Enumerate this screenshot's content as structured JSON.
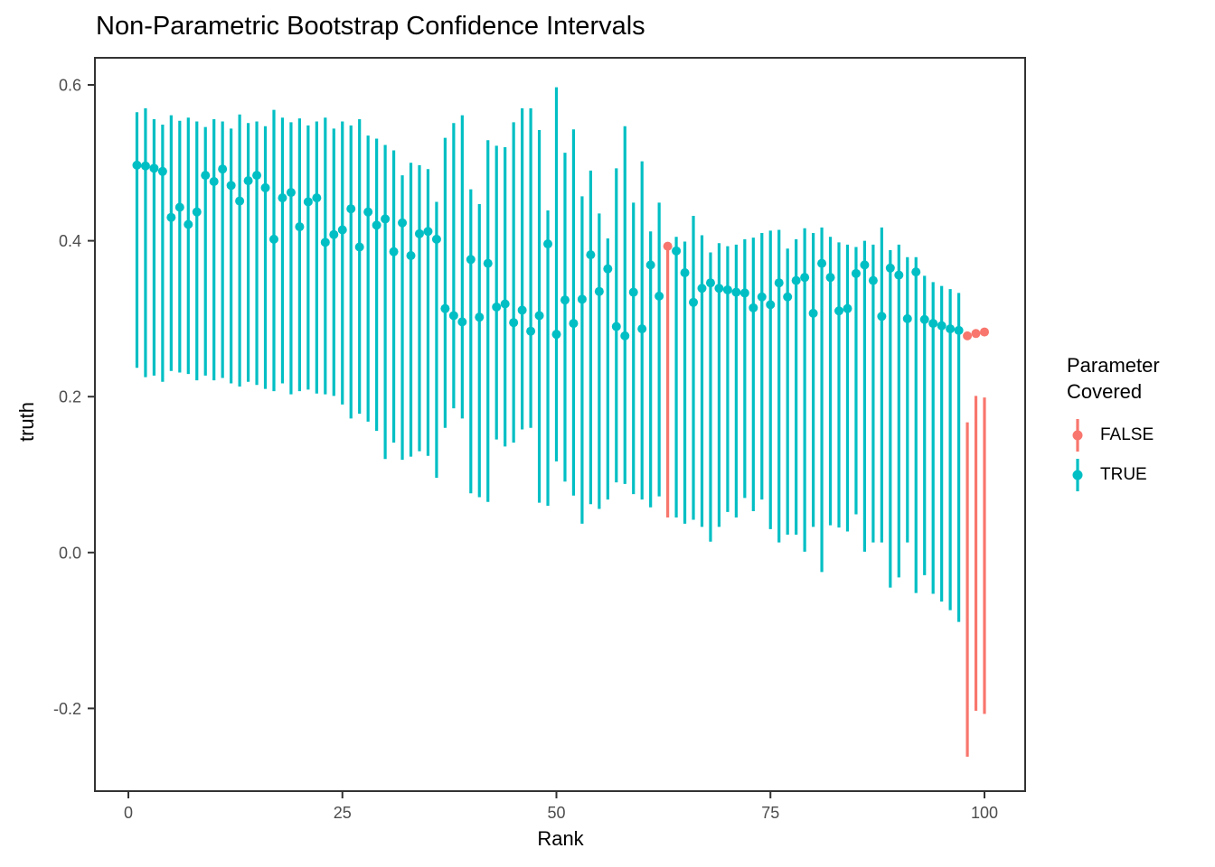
{
  "chart_data": {
    "type": "pointrange-scatter",
    "title": "Non-Parametric Bootstrap Confidence Intervals",
    "xlabel": "Rank",
    "ylabel": "truth",
    "grid": false,
    "panel_background": "#ffffff",
    "border_color": "#333333",
    "tick_label_color": "#4d4d4d",
    "xlim": [
      -4,
      104.5
    ],
    "ylim": [
      -0.306,
      0.641
    ],
    "x_ticks": [
      {
        "v": 0,
        "label": "0"
      },
      {
        "v": 25,
        "label": "25"
      },
      {
        "v": 50,
        "label": "50"
      },
      {
        "v": 75,
        "label": "75"
      },
      {
        "v": 100,
        "label": "100"
      }
    ],
    "y_ticks": [
      {
        "v": 0.6,
        "label": "0.6"
      },
      {
        "v": 0.4,
        "label": "0.4"
      },
      {
        "v": 0.2,
        "label": "0.2"
      },
      {
        "v": 0.0,
        "label": "0.0"
      },
      {
        "v": -0.2,
        "label": "-0.2"
      }
    ],
    "legend": {
      "title": "Parameter Covered",
      "position": "right",
      "items": [
        {
          "label": "FALSE",
          "value": false,
          "color": "#F8766D"
        },
        {
          "label": "TRUE",
          "value": true,
          "color": "#00BFC4"
        }
      ]
    },
    "points": [
      {
        "r": 1,
        "est": 0.497,
        "lo": 0.237,
        "hi": 0.565,
        "cov": true
      },
      {
        "r": 2,
        "est": 0.496,
        "lo": 0.225,
        "hi": 0.57,
        "cov": true
      },
      {
        "r": 3,
        "est": 0.493,
        "lo": 0.227,
        "hi": 0.556,
        "cov": true
      },
      {
        "r": 4,
        "est": 0.489,
        "lo": 0.219,
        "hi": 0.549,
        "cov": true
      },
      {
        "r": 5,
        "est": 0.43,
        "lo": 0.233,
        "hi": 0.561,
        "cov": true
      },
      {
        "r": 6,
        "est": 0.443,
        "lo": 0.231,
        "hi": 0.554,
        "cov": true
      },
      {
        "r": 7,
        "est": 0.421,
        "lo": 0.229,
        "hi": 0.558,
        "cov": true
      },
      {
        "r": 8,
        "est": 0.437,
        "lo": 0.221,
        "hi": 0.553,
        "cov": true
      },
      {
        "r": 9,
        "est": 0.484,
        "lo": 0.227,
        "hi": 0.546,
        "cov": true
      },
      {
        "r": 10,
        "est": 0.476,
        "lo": 0.221,
        "hi": 0.556,
        "cov": true
      },
      {
        "r": 11,
        "est": 0.492,
        "lo": 0.224,
        "hi": 0.553,
        "cov": true
      },
      {
        "r": 12,
        "est": 0.471,
        "lo": 0.217,
        "hi": 0.544,
        "cov": true
      },
      {
        "r": 13,
        "est": 0.451,
        "lo": 0.213,
        "hi": 0.562,
        "cov": true
      },
      {
        "r": 14,
        "est": 0.477,
        "lo": 0.219,
        "hi": 0.551,
        "cov": true
      },
      {
        "r": 15,
        "est": 0.484,
        "lo": 0.215,
        "hi": 0.553,
        "cov": true
      },
      {
        "r": 16,
        "est": 0.468,
        "lo": 0.21,
        "hi": 0.547,
        "cov": true
      },
      {
        "r": 17,
        "est": 0.402,
        "lo": 0.207,
        "hi": 0.568,
        "cov": true
      },
      {
        "r": 18,
        "est": 0.455,
        "lo": 0.217,
        "hi": 0.558,
        "cov": true
      },
      {
        "r": 19,
        "est": 0.462,
        "lo": 0.203,
        "hi": 0.552,
        "cov": true
      },
      {
        "r": 20,
        "est": 0.418,
        "lo": 0.207,
        "hi": 0.557,
        "cov": true
      },
      {
        "r": 21,
        "est": 0.45,
        "lo": 0.209,
        "hi": 0.548,
        "cov": true
      },
      {
        "r": 22,
        "est": 0.455,
        "lo": 0.204,
        "hi": 0.553,
        "cov": true
      },
      {
        "r": 23,
        "est": 0.398,
        "lo": 0.203,
        "hi": 0.558,
        "cov": true
      },
      {
        "r": 24,
        "est": 0.408,
        "lo": 0.201,
        "hi": 0.544,
        "cov": true
      },
      {
        "r": 25,
        "est": 0.414,
        "lo": 0.19,
        "hi": 0.553,
        "cov": true
      },
      {
        "r": 26,
        "est": 0.441,
        "lo": 0.172,
        "hi": 0.548,
        "cov": true
      },
      {
        "r": 27,
        "est": 0.392,
        "lo": 0.178,
        "hi": 0.556,
        "cov": true
      },
      {
        "r": 28,
        "est": 0.437,
        "lo": 0.168,
        "hi": 0.535,
        "cov": true
      },
      {
        "r": 29,
        "est": 0.42,
        "lo": 0.156,
        "hi": 0.531,
        "cov": true
      },
      {
        "r": 30,
        "est": 0.428,
        "lo": 0.12,
        "hi": 0.523,
        "cov": true
      },
      {
        "r": 31,
        "est": 0.386,
        "lo": 0.141,
        "hi": 0.516,
        "cov": true
      },
      {
        "r": 32,
        "est": 0.423,
        "lo": 0.119,
        "hi": 0.484,
        "cov": true
      },
      {
        "r": 33,
        "est": 0.381,
        "lo": 0.123,
        "hi": 0.5,
        "cov": true
      },
      {
        "r": 34,
        "est": 0.409,
        "lo": 0.13,
        "hi": 0.497,
        "cov": true
      },
      {
        "r": 35,
        "est": 0.412,
        "lo": 0.124,
        "hi": 0.492,
        "cov": true
      },
      {
        "r": 36,
        "est": 0.402,
        "lo": 0.096,
        "hi": 0.45,
        "cov": true
      },
      {
        "r": 37,
        "est": 0.313,
        "lo": 0.16,
        "hi": 0.532,
        "cov": true
      },
      {
        "r": 38,
        "est": 0.304,
        "lo": 0.185,
        "hi": 0.551,
        "cov": true
      },
      {
        "r": 39,
        "est": 0.296,
        "lo": 0.172,
        "hi": 0.561,
        "cov": true
      },
      {
        "r": 40,
        "est": 0.376,
        "lo": 0.076,
        "hi": 0.466,
        "cov": true
      },
      {
        "r": 41,
        "est": 0.302,
        "lo": 0.071,
        "hi": 0.447,
        "cov": true
      },
      {
        "r": 42,
        "est": 0.371,
        "lo": 0.065,
        "hi": 0.529,
        "cov": true
      },
      {
        "r": 43,
        "est": 0.315,
        "lo": 0.145,
        "hi": 0.522,
        "cov": true
      },
      {
        "r": 44,
        "est": 0.319,
        "lo": 0.136,
        "hi": 0.52,
        "cov": true
      },
      {
        "r": 45,
        "est": 0.295,
        "lo": 0.141,
        "hi": 0.552,
        "cov": true
      },
      {
        "r": 46,
        "est": 0.311,
        "lo": 0.158,
        "hi": 0.57,
        "cov": true
      },
      {
        "r": 47,
        "est": 0.284,
        "lo": 0.16,
        "hi": 0.57,
        "cov": true
      },
      {
        "r": 48,
        "est": 0.304,
        "lo": 0.064,
        "hi": 0.542,
        "cov": true
      },
      {
        "r": 49,
        "est": 0.396,
        "lo": 0.06,
        "hi": 0.439,
        "cov": true
      },
      {
        "r": 50,
        "est": 0.28,
        "lo": 0.117,
        "hi": 0.597,
        "cov": true
      },
      {
        "r": 51,
        "est": 0.324,
        "lo": 0.091,
        "hi": 0.513,
        "cov": true
      },
      {
        "r": 52,
        "est": 0.294,
        "lo": 0.073,
        "hi": 0.543,
        "cov": true
      },
      {
        "r": 53,
        "est": 0.325,
        "lo": 0.037,
        "hi": 0.457,
        "cov": true
      },
      {
        "r": 54,
        "est": 0.382,
        "lo": 0.062,
        "hi": 0.49,
        "cov": true
      },
      {
        "r": 55,
        "est": 0.335,
        "lo": 0.056,
        "hi": 0.435,
        "cov": true
      },
      {
        "r": 56,
        "est": 0.364,
        "lo": 0.068,
        "hi": 0.403,
        "cov": true
      },
      {
        "r": 57,
        "est": 0.29,
        "lo": 0.09,
        "hi": 0.493,
        "cov": true
      },
      {
        "r": 58,
        "est": 0.278,
        "lo": 0.088,
        "hi": 0.547,
        "cov": true
      },
      {
        "r": 59,
        "est": 0.334,
        "lo": 0.075,
        "hi": 0.449,
        "cov": true
      },
      {
        "r": 60,
        "est": 0.287,
        "lo": 0.068,
        "hi": 0.502,
        "cov": true
      },
      {
        "r": 61,
        "est": 0.369,
        "lo": 0.058,
        "hi": 0.412,
        "cov": true
      },
      {
        "r": 62,
        "est": 0.329,
        "lo": 0.072,
        "hi": 0.449,
        "cov": true
      },
      {
        "r": 63,
        "est": 0.393,
        "lo": 0.045,
        "hi": 0.388,
        "cov": false
      },
      {
        "r": 64,
        "est": 0.387,
        "lo": 0.045,
        "hi": 0.405,
        "cov": true
      },
      {
        "r": 65,
        "est": 0.359,
        "lo": 0.037,
        "hi": 0.399,
        "cov": true
      },
      {
        "r": 66,
        "est": 0.321,
        "lo": 0.042,
        "hi": 0.432,
        "cov": true
      },
      {
        "r": 67,
        "est": 0.339,
        "lo": 0.033,
        "hi": 0.407,
        "cov": true
      },
      {
        "r": 68,
        "est": 0.346,
        "lo": 0.014,
        "hi": 0.385,
        "cov": true
      },
      {
        "r": 69,
        "est": 0.339,
        "lo": 0.033,
        "hi": 0.397,
        "cov": true
      },
      {
        "r": 70,
        "est": 0.337,
        "lo": 0.052,
        "hi": 0.393,
        "cov": true
      },
      {
        "r": 71,
        "est": 0.334,
        "lo": 0.045,
        "hi": 0.395,
        "cov": true
      },
      {
        "r": 72,
        "est": 0.333,
        "lo": 0.07,
        "hi": 0.402,
        "cov": true
      },
      {
        "r": 73,
        "est": 0.314,
        "lo": 0.053,
        "hi": 0.404,
        "cov": true
      },
      {
        "r": 74,
        "est": 0.328,
        "lo": 0.068,
        "hi": 0.41,
        "cov": true
      },
      {
        "r": 75,
        "est": 0.318,
        "lo": 0.03,
        "hi": 0.413,
        "cov": true
      },
      {
        "r": 76,
        "est": 0.346,
        "lo": 0.013,
        "hi": 0.414,
        "cov": true
      },
      {
        "r": 77,
        "est": 0.328,
        "lo": 0.023,
        "hi": 0.39,
        "cov": true
      },
      {
        "r": 78,
        "est": 0.349,
        "lo": 0.023,
        "hi": 0.402,
        "cov": true
      },
      {
        "r": 79,
        "est": 0.353,
        "lo": 0.001,
        "hi": 0.416,
        "cov": true
      },
      {
        "r": 80,
        "est": 0.307,
        "lo": 0.033,
        "hi": 0.41,
        "cov": true
      },
      {
        "r": 81,
        "est": 0.371,
        "lo": -0.025,
        "hi": 0.417,
        "cov": true
      },
      {
        "r": 82,
        "est": 0.353,
        "lo": 0.035,
        "hi": 0.405,
        "cov": true
      },
      {
        "r": 83,
        "est": 0.31,
        "lo": 0.032,
        "hi": 0.398,
        "cov": true
      },
      {
        "r": 84,
        "est": 0.313,
        "lo": 0.027,
        "hi": 0.395,
        "cov": true
      },
      {
        "r": 85,
        "est": 0.358,
        "lo": 0.049,
        "hi": 0.392,
        "cov": true
      },
      {
        "r": 86,
        "est": 0.369,
        "lo": 0.001,
        "hi": 0.4,
        "cov": true
      },
      {
        "r": 87,
        "est": 0.349,
        "lo": 0.013,
        "hi": 0.395,
        "cov": true
      },
      {
        "r": 88,
        "est": 0.303,
        "lo": 0.013,
        "hi": 0.417,
        "cov": true
      },
      {
        "r": 89,
        "est": 0.365,
        "lo": -0.045,
        "hi": 0.388,
        "cov": true
      },
      {
        "r": 90,
        "est": 0.356,
        "lo": -0.032,
        "hi": 0.395,
        "cov": true
      },
      {
        "r": 91,
        "est": 0.3,
        "lo": 0.013,
        "hi": 0.379,
        "cov": true
      },
      {
        "r": 92,
        "est": 0.36,
        "lo": -0.052,
        "hi": 0.379,
        "cov": true
      },
      {
        "r": 93,
        "est": 0.299,
        "lo": -0.029,
        "hi": 0.355,
        "cov": true
      },
      {
        "r": 94,
        "est": 0.294,
        "lo": -0.053,
        "hi": 0.347,
        "cov": true
      },
      {
        "r": 95,
        "est": 0.291,
        "lo": -0.063,
        "hi": 0.342,
        "cov": true
      },
      {
        "r": 96,
        "est": 0.287,
        "lo": -0.074,
        "hi": 0.338,
        "cov": true
      },
      {
        "r": 97,
        "est": 0.285,
        "lo": -0.089,
        "hi": 0.333,
        "cov": true
      },
      {
        "r": 98,
        "est": 0.278,
        "lo": -0.262,
        "hi": 0.167,
        "cov": false
      },
      {
        "r": 99,
        "est": 0.281,
        "lo": -0.203,
        "hi": 0.201,
        "cov": false
      },
      {
        "r": 100,
        "est": 0.283,
        "lo": -0.207,
        "hi": 0.199,
        "cov": false
      }
    ]
  }
}
